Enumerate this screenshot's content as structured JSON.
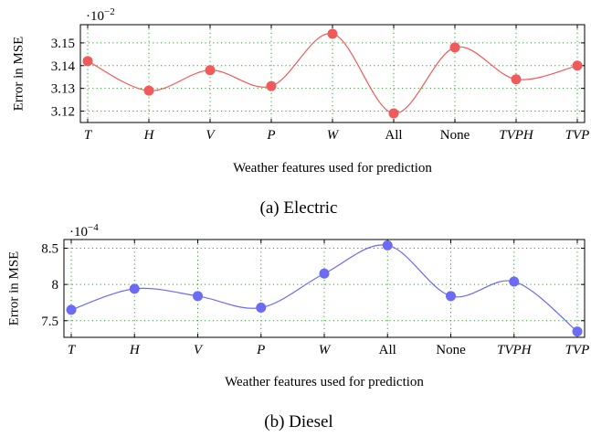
{
  "chart_data": [
    {
      "type": "line",
      "categories": [
        "T",
        "H",
        "V",
        "P",
        "W",
        "All",
        "None",
        "TVPH",
        "TVP"
      ],
      "italic_categories": [
        "T",
        "H",
        "V",
        "P",
        "W",
        "TVPH",
        "TVP"
      ],
      "series": [
        {
          "values": [
            3.142,
            3.129,
            3.138,
            3.131,
            3.154,
            3.119,
            3.148,
            3.134,
            3.14
          ],
          "color": "#f05a5a"
        }
      ],
      "yticks": [
        "3.12",
        "3.13",
        "3.14",
        "3.15"
      ],
      "ylim": [
        3.115,
        3.158
      ],
      "scale_prefix": "·10",
      "scale_exponent": "−2",
      "xlabel": "Weather features used for prediction",
      "ylabel": "Error in MSE",
      "caption": "(a) Electric",
      "grid": true
    },
    {
      "type": "line",
      "categories": [
        "T",
        "H",
        "V",
        "P",
        "W",
        "All",
        "None",
        "TVPH",
        "TVP"
      ],
      "italic_categories": [
        "T",
        "H",
        "V",
        "P",
        "W",
        "TVPH",
        "TVP"
      ],
      "series": [
        {
          "values": [
            7.65,
            7.94,
            7.84,
            7.68,
            8.15,
            8.54,
            7.84,
            8.04,
            7.35
          ],
          "color": "#6b6bf5"
        }
      ],
      "yticks": [
        "7.5",
        "8",
        "8.5"
      ],
      "ylim": [
        7.27,
        8.62
      ],
      "scale_prefix": "·10",
      "scale_exponent": "−4",
      "xlabel": "Weather features used for prediction",
      "ylabel": "Error in MSE",
      "caption": "(b) Diesel",
      "grid": true
    }
  ]
}
